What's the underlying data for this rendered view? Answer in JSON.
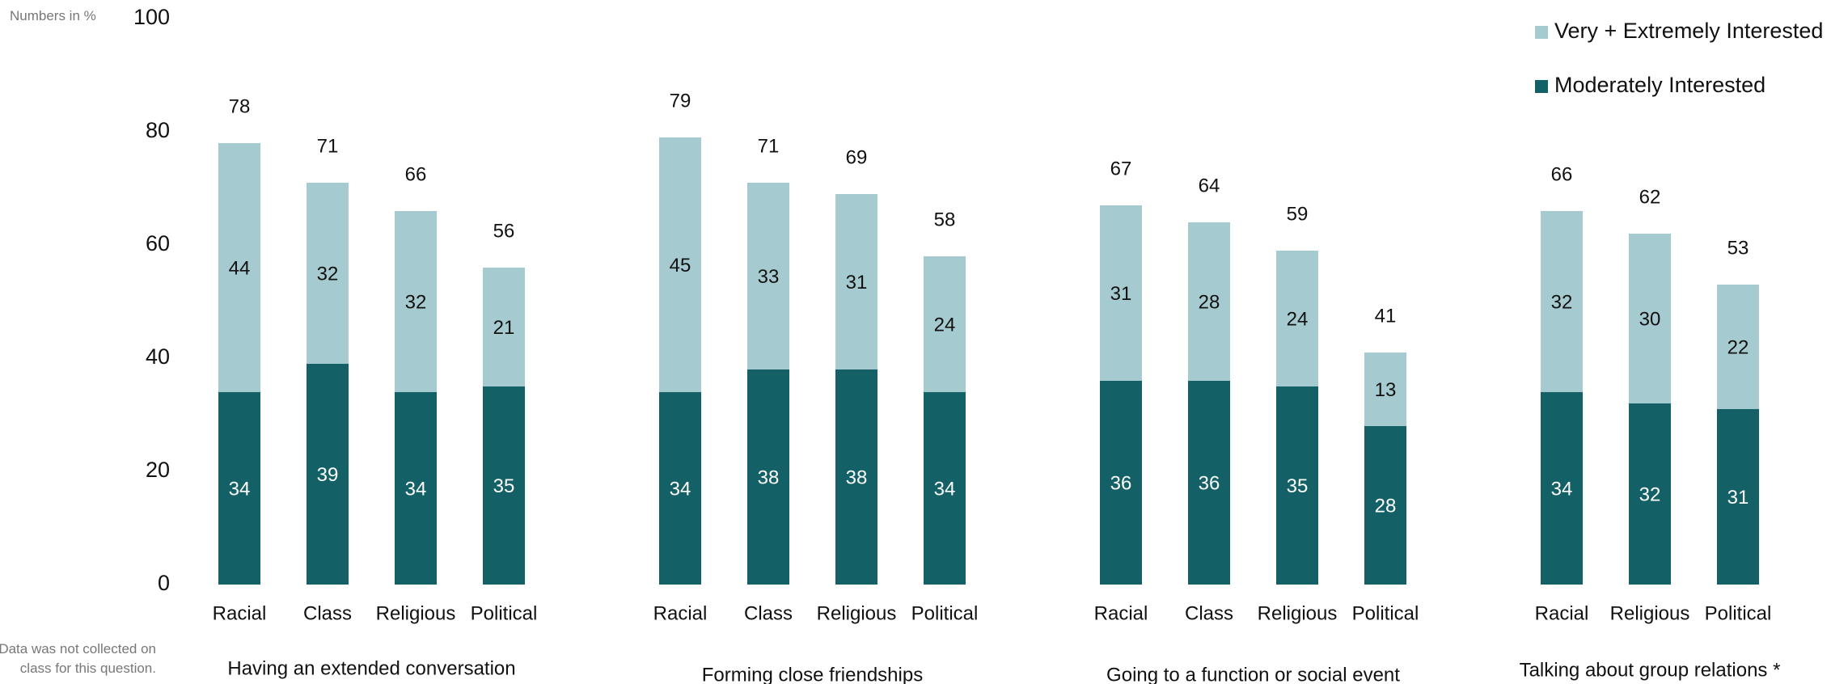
{
  "units_label": "Numbers in %",
  "footnote": [
    "*Data was not collected on",
    "class for this question."
  ],
  "chart_data": {
    "type": "bar",
    "stacked": true,
    "ylim": [
      0,
      100
    ],
    "yticks": [
      0,
      20,
      40,
      60,
      80,
      100
    ],
    "grid": false,
    "legend_position": "top-right",
    "colors": {
      "very_extremely": "#a5cbd0",
      "moderately": "#136166"
    },
    "legend": [
      "Very + Extremely Interested",
      "Moderately Interested"
    ],
    "groups": [
      {
        "label": "Having an extended conversation",
        "categories": [
          "Racial",
          "Class",
          "Religious",
          "Political"
        ],
        "moderately": [
          34,
          39,
          34,
          35
        ],
        "very_extremely": [
          44,
          32,
          32,
          21
        ],
        "totals": [
          78,
          71,
          66,
          56
        ]
      },
      {
        "label": "Forming close friendships",
        "categories": [
          "Racial",
          "Class",
          "Religious",
          "Political"
        ],
        "moderately": [
          34,
          38,
          38,
          34
        ],
        "very_extremely": [
          45,
          33,
          31,
          24
        ],
        "totals": [
          79,
          71,
          69,
          58
        ]
      },
      {
        "label": "Going to a function or social event",
        "categories": [
          "Racial",
          "Class",
          "Religious",
          "Political"
        ],
        "moderately": [
          36,
          36,
          35,
          28
        ],
        "very_extremely": [
          31,
          28,
          24,
          13
        ],
        "totals": [
          67,
          64,
          59,
          41
        ]
      },
      {
        "label": "Talking about group relations *",
        "categories": [
          "Racial",
          "Religious",
          "Political"
        ],
        "moderately": [
          34,
          32,
          31
        ],
        "very_extremely": [
          32,
          30,
          22
        ],
        "totals": [
          66,
          62,
          53
        ]
      }
    ]
  }
}
